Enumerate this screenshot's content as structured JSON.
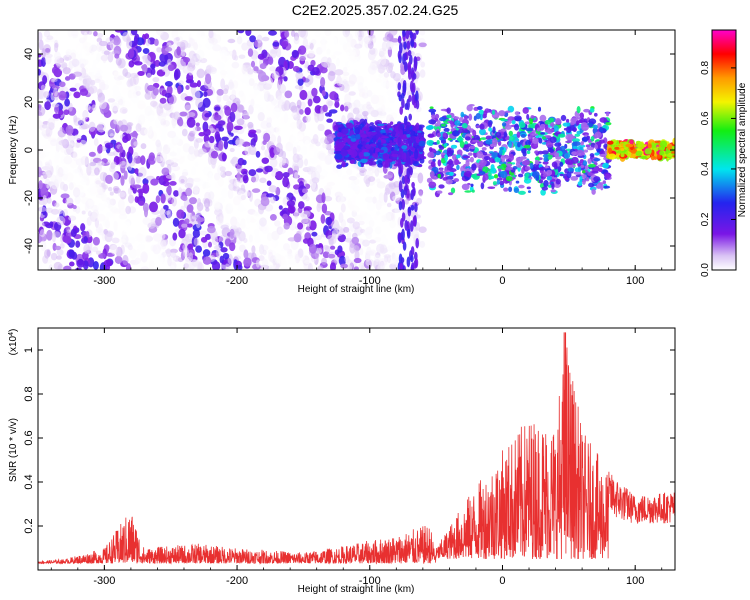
{
  "title": "C2E2.2025.357.02.24.G25",
  "chart_data": [
    {
      "type": "heatmap",
      "xlabel": "Height of straight line (km)",
      "ylabel": "Frequency (Hz)",
      "xlim": [
        -350,
        130
      ],
      "ylim": [
        -50,
        50
      ],
      "xticks": [
        -300,
        -200,
        -100,
        0,
        100
      ],
      "yticks": [
        -40,
        -20,
        0,
        20,
        40
      ],
      "colorbar": {
        "label": "Normalized spectral amplitude",
        "range": [
          0,
          0.95
        ],
        "ticks": [
          0.0,
          0.2,
          0.4,
          0.6,
          0.8
        ],
        "colormap": "rainbow (white-violet-blue-cyan-green-yellow-orange-red-magenta)"
      },
      "regions": [
        {
          "x": [
            -350,
            -60
          ],
          "freq_spread": "broadband -50 to 50 Hz, diagonal striations",
          "amplitude": [
            0.0,
            0.25
          ]
        },
        {
          "x": [
            -125,
            -60
          ],
          "freq_band": [
            -5,
            10
          ],
          "amplitude": [
            0.15,
            0.35
          ]
        },
        {
          "x": [
            -55,
            80
          ],
          "freq_band": [
            -15,
            15
          ],
          "amplitude": [
            0.1,
            0.55
          ]
        },
        {
          "x": [
            80,
            130
          ],
          "freq_band": [
            -3,
            3
          ],
          "amplitude": [
            0.6,
            0.95
          ]
        }
      ]
    },
    {
      "type": "line",
      "xlabel": "Height of straight line (km)",
      "ylabel": "SNR (10 * v/v)",
      "yscale_label": "(x10",
      "yscale_exp": "4",
      "yscale_close": ")",
      "xlim": [
        -350,
        130
      ],
      "ylim": [
        0,
        1.1
      ],
      "xticks": [
        -300,
        -200,
        -100,
        0,
        100
      ],
      "yticks": [
        0.2,
        0.4,
        0.6,
        0.8,
        1.0
      ],
      "color": "#e83030",
      "envelope": [
        {
          "x": -350,
          "y": 0.04
        },
        {
          "x": -330,
          "y": 0.05
        },
        {
          "x": -300,
          "y": 0.1
        },
        {
          "x": -280,
          "y": 0.28
        },
        {
          "x": -270,
          "y": 0.1
        },
        {
          "x": -230,
          "y": 0.12
        },
        {
          "x": -200,
          "y": 0.1
        },
        {
          "x": -150,
          "y": 0.08
        },
        {
          "x": -120,
          "y": 0.11
        },
        {
          "x": -80,
          "y": 0.16
        },
        {
          "x": -55,
          "y": 0.21
        },
        {
          "x": -50,
          "y": 0.1
        },
        {
          "x": -30,
          "y": 0.3
        },
        {
          "x": 0,
          "y": 0.55
        },
        {
          "x": 20,
          "y": 0.7
        },
        {
          "x": 40,
          "y": 0.68
        },
        {
          "x": 48,
          "y": 1.08
        },
        {
          "x": 60,
          "y": 0.64
        },
        {
          "x": 80,
          "y": 0.45
        },
        {
          "x": 100,
          "y": 0.34
        },
        {
          "x": 130,
          "y": 0.36
        }
      ]
    }
  ]
}
